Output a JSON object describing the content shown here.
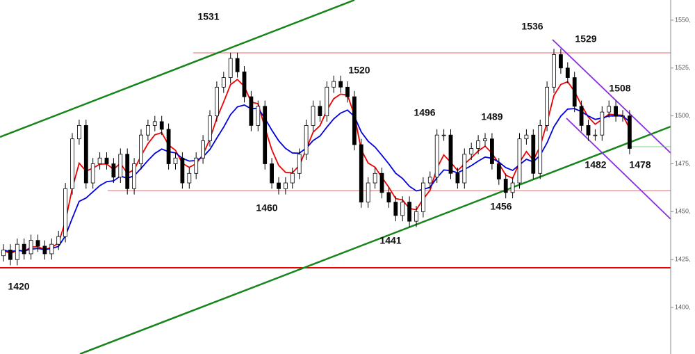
{
  "chart_data": {
    "type": "candlestick",
    "ylim": [
      1375.7,
      1560.5
    ],
    "yticks": [
      {
        "value": 1550,
        "label": "1550,"
      },
      {
        "value": 1525,
        "label": "1525,"
      },
      {
        "value": 1500,
        "label": "1500,"
      },
      {
        "value": 1475,
        "label": "1475,"
      },
      {
        "value": 1450,
        "label": "1450,"
      },
      {
        "value": 1425,
        "label": "1425,"
      },
      {
        "value": 1400,
        "label": "1400,"
      }
    ],
    "open": [
      1427,
      1430,
      1425,
      1433,
      1428,
      1435,
      1432,
      1428,
      1433,
      1437,
      1462,
      1488,
      1495,
      1465,
      1475,
      1478,
      1475,
      1468,
      1480,
      1462,
      1475,
      1490,
      1495,
      1497,
      1493,
      1475,
      1478,
      1465,
      1470,
      1478,
      1487,
      1500,
      1515,
      1520,
      1530,
      1523,
      1510,
      1495,
      1505,
      1475,
      1465,
      1462,
      1465,
      1470,
      1480,
      1495,
      1505,
      1500,
      1515,
      1518,
      1515,
      1510,
      1485,
      1455,
      1465,
      1470,
      1460,
      1455,
      1448,
      1455,
      1445,
      1450,
      1465,
      1468,
      1490,
      1490,
      1470,
      1465,
      1480,
      1483,
      1487,
      1488,
      1475,
      1467,
      1460,
      1465,
      1488,
      1490,
      1470,
      1495,
      1515,
      1532,
      1525,
      1520,
      1505,
      1495,
      1490,
      1490,
      1502,
      1505,
      1500,
      1500
    ],
    "high": [
      1433,
      1433,
      1436,
      1436,
      1438,
      1438,
      1435,
      1436,
      1440,
      1465,
      1491,
      1498,
      1498,
      1478,
      1481,
      1481,
      1478,
      1483,
      1483,
      1478,
      1493,
      1498,
      1500,
      1500,
      1496,
      1481,
      1481,
      1473,
      1481,
      1490,
      1503,
      1518,
      1523,
      1533,
      1533,
      1526,
      1513,
      1508,
      1508,
      1478,
      1468,
      1468,
      1473,
      1483,
      1498,
      1508,
      1508,
      1518,
      1521,
      1521,
      1518,
      1513,
      1488,
      1468,
      1473,
      1473,
      1463,
      1458,
      1458,
      1458,
      1453,
      1468,
      1471,
      1493,
      1493,
      1493,
      1473,
      1483,
      1486,
      1490,
      1491,
      1491,
      1478,
      1470,
      1468,
      1491,
      1493,
      1493,
      1498,
      1518,
      1535,
      1535,
      1528,
      1523,
      1508,
      1498,
      1493,
      1505,
      1508,
      1508,
      1503,
      1503
    ],
    "low": [
      1424,
      1422,
      1422,
      1425,
      1425,
      1429,
      1425,
      1425,
      1430,
      1434,
      1459,
      1485,
      1462,
      1462,
      1472,
      1472,
      1465,
      1465,
      1459,
      1459,
      1472,
      1487,
      1492,
      1490,
      1472,
      1472,
      1462,
      1462,
      1467,
      1475,
      1484,
      1497,
      1512,
      1517,
      1520,
      1507,
      1492,
      1492,
      1472,
      1462,
      1459,
      1459,
      1462,
      1467,
      1477,
      1492,
      1497,
      1497,
      1512,
      1512,
      1507,
      1482,
      1452,
      1452,
      1462,
      1457,
      1452,
      1445,
      1445,
      1442,
      1442,
      1447,
      1462,
      1465,
      1487,
      1467,
      1462,
      1462,
      1477,
      1480,
      1484,
      1472,
      1464,
      1457,
      1457,
      1462,
      1485,
      1467,
      1467,
      1492,
      1512,
      1522,
      1517,
      1502,
      1492,
      1487,
      1487,
      1487,
      1499,
      1497,
      1497,
      1480
    ],
    "close": [
      1430,
      1425,
      1433,
      1428,
      1435,
      1432,
      1428,
      1433,
      1437,
      1462,
      1488,
      1495,
      1465,
      1475,
      1478,
      1475,
      1468,
      1480,
      1462,
      1475,
      1490,
      1495,
      1497,
      1493,
      1475,
      1478,
      1465,
      1470,
      1478,
      1487,
      1500,
      1515,
      1520,
      1530,
      1523,
      1510,
      1495,
      1505,
      1475,
      1465,
      1462,
      1465,
      1470,
      1480,
      1495,
      1505,
      1500,
      1515,
      1518,
      1515,
      1510,
      1485,
      1455,
      1465,
      1470,
      1460,
      1455,
      1448,
      1455,
      1445,
      1450,
      1465,
      1468,
      1490,
      1490,
      1470,
      1465,
      1480,
      1483,
      1487,
      1488,
      1475,
      1467,
      1460,
      1465,
      1488,
      1490,
      1470,
      1495,
      1515,
      1532,
      1525,
      1520,
      1505,
      1495,
      1490,
      1490,
      1502,
      1505,
      1500,
      1500,
      1483
    ],
    "annotations": [
      1531,
      1420,
      1460,
      1520,
      1441,
      1496,
      1489,
      1456,
      1536,
      1529,
      1508,
      1482,
      1478
    ]
  }
}
